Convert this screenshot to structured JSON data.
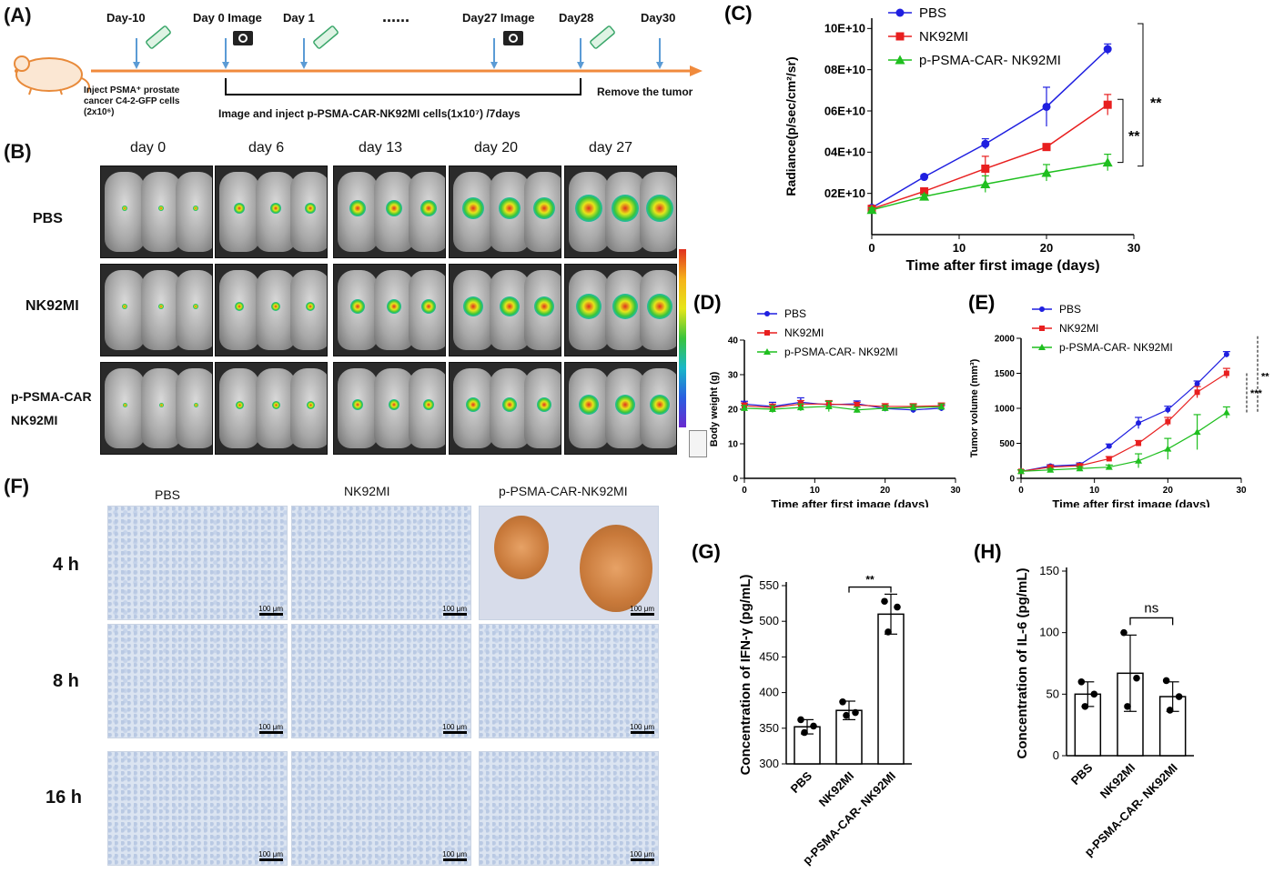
{
  "panel_labels": {
    "A": "(A)",
    "B": "(B)",
    "C": "(C)",
    "D": "(D)",
    "E": "(E)",
    "F": "(F)",
    "G": "(G)",
    "H": "(H)"
  },
  "timeline": {
    "day_minus10": "Day-10",
    "day0": "Day 0 Image",
    "day1": "Day 1",
    "dots": "......",
    "day27": "Day27 Image",
    "day28": "Day28",
    "day30": "Day30",
    "inject_text_1": "Inject PSMA⁺ prostate",
    "inject_text_2": "cancer C4-2-GFP cells",
    "inject_text_3": "(2x10⁶)",
    "bracket_text": "Image and inject p-PSMA-CAR-NK92MI cells(1x10⁷)  /7days",
    "remove_text": "Remove the tumor",
    "axis_color": "#f08a3c",
    "marker_color": "#5b9bd5"
  },
  "imaging": {
    "days": [
      "day 0",
      "day 6",
      "day 13",
      "day 20",
      "day 27"
    ],
    "groups": [
      "PBS",
      "NK92MI",
      "p-PSMA-CAR",
      "NK92MI"
    ]
  },
  "histology": {
    "columns": [
      "PBS",
      "NK92MI",
      "p-PSMA-CAR-NK92MI"
    ],
    "rows": [
      "4 h",
      "8 h",
      "16 h"
    ],
    "scale": "100 μm"
  },
  "chart_data": [
    {
      "id": "C",
      "type": "line",
      "ylabel": "Radiance(p/sec/cm²/sr)",
      "xlabel": "Time after first image (days)",
      "x": [
        0,
        6,
        13,
        20,
        27
      ],
      "xlim": [
        0,
        30
      ],
      "xticks": [
        0,
        10,
        20,
        30
      ],
      "ylim": [
        0,
        105000000000.0
      ],
      "yticks": [
        20000000000.0,
        40000000000.0,
        60000000000.0,
        80000000000.0,
        100000000000.0
      ],
      "yticklabels": [
        "02E+10",
        "04E+10",
        "06E+10",
        "08E+10",
        "10E+10"
      ],
      "series": [
        {
          "name": "PBS",
          "color": "#1f1fe0",
          "marker": "circle",
          "values": [
            13000000000.0,
            28000000000.0,
            44000000000.0,
            62000000000.0,
            90000000000.0
          ],
          "err": [
            1000000000.0,
            1000000000.0,
            2500000000.0,
            9500000000.0,
            2500000000.0
          ]
        },
        {
          "name": "NK92MI",
          "color": "#e81f1f",
          "marker": "square",
          "values": [
            12500000000.0,
            21000000000.0,
            32000000000.0,
            42500000000.0,
            63000000000.0
          ],
          "err": [
            1000000000.0,
            1500000000.0,
            6000000000.0,
            1000000000.0,
            5000000000.0
          ]
        },
        {
          "name": "p-PSMA-CAR- NK92MI",
          "color": "#1fbf1f",
          "marker": "triangle",
          "values": [
            12000000000.0,
            18500000000.0,
            24500000000.0,
            30000000000.0,
            35000000000.0
          ],
          "err": [
            1000000000.0,
            1000000000.0,
            4000000000.0,
            4000000000.0,
            4000000000.0
          ]
        }
      ],
      "sig": [
        "**",
        "**"
      ],
      "legend": "top-left"
    },
    {
      "id": "D",
      "type": "line",
      "ylabel": "Body weight (g)",
      "xlabel": "Time after first image (days)",
      "x": [
        0,
        4,
        8,
        12,
        16,
        20,
        24,
        28
      ],
      "xlim": [
        0,
        30
      ],
      "xticks": [
        0,
        10,
        20,
        30
      ],
      "ylim": [
        0,
        40
      ],
      "yticks": [
        0,
        10,
        20,
        30,
        40
      ],
      "series": [
        {
          "name": "PBS",
          "color": "#1f1fe0",
          "marker": "circle",
          "values": [
            21.5,
            20.8,
            22.0,
            21.3,
            21.6,
            20.2,
            19.8,
            20.3
          ],
          "err": [
            0.8,
            1.2,
            1.3,
            1.0,
            0.8,
            0.8,
            0.8,
            0.8
          ]
        },
        {
          "name": "NK92MI",
          "color": "#e81f1f",
          "marker": "square",
          "values": [
            21.0,
            20.5,
            21.5,
            21.5,
            21.2,
            20.8,
            20.8,
            21.0
          ],
          "err": [
            0.8,
            1.0,
            1.0,
            1.0,
            0.8,
            0.8,
            0.8,
            0.8
          ]
        },
        {
          "name": "p-PSMA-CAR- NK92MI",
          "color": "#1fbf1f",
          "marker": "triangle",
          "values": [
            20.3,
            20.0,
            20.5,
            20.8,
            19.8,
            20.3,
            20.5,
            20.7
          ],
          "err": [
            0.8,
            1.0,
            1.0,
            1.5,
            0.8,
            0.8,
            0.8,
            0.8
          ]
        }
      ],
      "legend": "top-left"
    },
    {
      "id": "E",
      "type": "line",
      "ylabel": "Tumor volume (mm³)",
      "xlabel": "Time after first image (days)",
      "x": [
        0,
        4,
        8,
        12,
        16,
        20,
        24,
        28
      ],
      "xlim": [
        0,
        30
      ],
      "xticks": [
        0,
        10,
        20,
        30
      ],
      "ylim": [
        0,
        2000
      ],
      "yticks": [
        0,
        500,
        1000,
        1500,
        2000
      ],
      "series": [
        {
          "name": "PBS",
          "color": "#1f1fe0",
          "marker": "circle",
          "values": [
            100,
            175,
            195,
            460,
            790,
            980,
            1350,
            1770
          ],
          "err": [
            20,
            20,
            25,
            30,
            80,
            50,
            40,
            40
          ]
        },
        {
          "name": "NK92MI",
          "color": "#e81f1f",
          "marker": "square",
          "values": [
            100,
            160,
            180,
            280,
            500,
            810,
            1230,
            1500
          ],
          "err": [
            20,
            20,
            25,
            30,
            40,
            60,
            80,
            70
          ]
        },
        {
          "name": "p-PSMA-CAR- NK92MI",
          "color": "#1fbf1f",
          "marker": "triangle",
          "values": [
            100,
            120,
            140,
            160,
            250,
            420,
            660,
            940
          ],
          "err": [
            20,
            20,
            25,
            30,
            100,
            150,
            250,
            80
          ]
        }
      ],
      "sig": [
        "***",
        "**"
      ],
      "legend": "top-left"
    },
    {
      "id": "G",
      "type": "bar",
      "ylabel": "Concentration of IFN-γ (pg/mL)",
      "categories": [
        "PBS",
        "NK92MI",
        "p-PSMA-CAR- NK92MI"
      ],
      "values": [
        352,
        375,
        510
      ],
      "err": [
        10,
        13,
        28
      ],
      "points": [
        [
          362,
          353,
          344
        ],
        [
          387,
          372,
          368
        ],
        [
          528,
          520,
          485
        ]
      ],
      "ylim": [
        300,
        550
      ],
      "yticks": [
        300,
        350,
        400,
        450,
        500,
        550
      ],
      "sig": "**"
    },
    {
      "id": "H",
      "type": "bar",
      "ylabel": "Concentration of IL-6 (pg/mL)",
      "categories": [
        "PBS",
        "NK92MI",
        "p-PSMA-CAR- NK92MI"
      ],
      "values": [
        50,
        67,
        48
      ],
      "err": [
        10,
        31,
        12
      ],
      "points": [
        [
          60,
          50,
          40
        ],
        [
          100,
          63,
          40
        ],
        [
          61,
          48,
          37
        ]
      ],
      "ylim": [
        0,
        150
      ],
      "yticks": [
        0,
        50,
        100,
        150
      ],
      "sig": "ns"
    }
  ]
}
